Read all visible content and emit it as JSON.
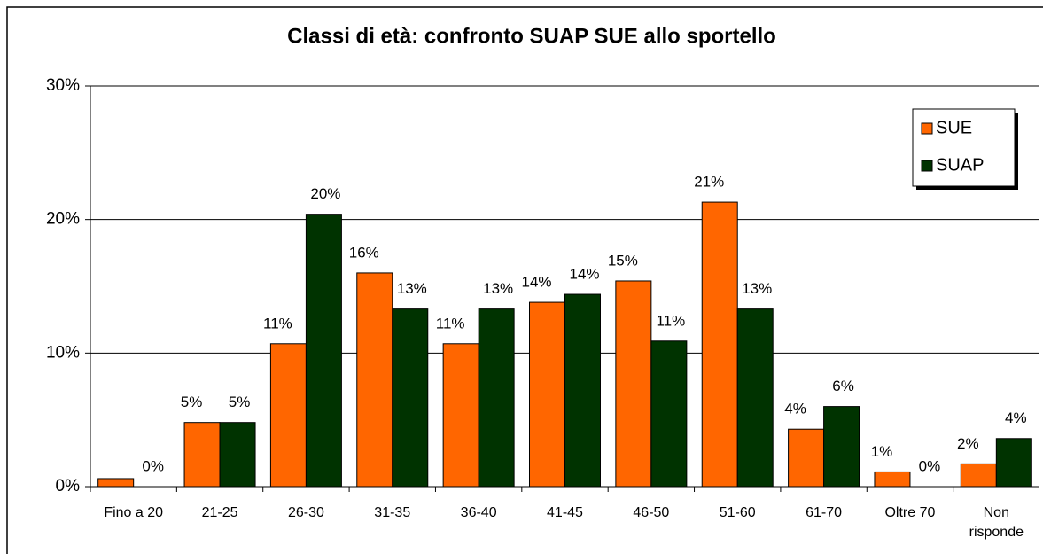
{
  "chart_data": {
    "type": "bar",
    "title": "Classi di età: confronto SUAP SUE allo sportello",
    "categories": [
      "Fino a 20",
      "21-25",
      "26-30",
      "31-35",
      "36-40",
      "41-45",
      "46-50",
      "51-60",
      "61-70",
      "Oltre 70",
      "Non risponde"
    ],
    "series": [
      {
        "name": "SUE",
        "color": "#ff6600",
        "values": [
          0.6,
          4.8,
          10.7,
          16.0,
          10.7,
          13.8,
          15.4,
          21.3,
          4.3,
          1.1,
          1.7
        ],
        "value_labels": [
          null,
          "5%",
          "11%",
          "16%",
          "11%",
          "14%",
          "15%",
          "21%",
          "4%",
          "1%",
          "2%"
        ]
      },
      {
        "name": "SUAP",
        "color": "#003300",
        "values": [
          0,
          4.8,
          20.4,
          13.3,
          13.3,
          14.4,
          10.9,
          13.3,
          6.0,
          0,
          3.6
        ],
        "value_labels": [
          "0%",
          "5%",
          "20%",
          "13%",
          "13%",
          "14%",
          "11%",
          "13%",
          "6%",
          "0%",
          "4%"
        ]
      }
    ],
    "ylim": [
      0,
      30
    ],
    "yticks": [
      {
        "value": 0,
        "label": "0%"
      },
      {
        "value": 10,
        "label": "10%"
      },
      {
        "value": 20,
        "label": "20%"
      },
      {
        "value": 30,
        "label": "30%"
      }
    ],
    "grid": true,
    "legend": "upper right"
  }
}
